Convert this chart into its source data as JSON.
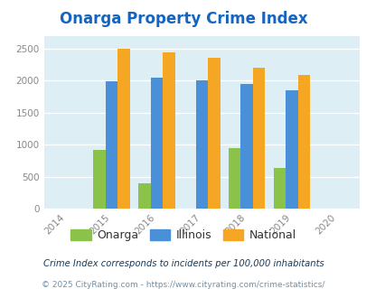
{
  "title": "Onarga Property Crime Index",
  "title_color": "#1565c0",
  "years": [
    2015,
    2016,
    2017,
    2018,
    2019
  ],
  "xlim": [
    2013.5,
    2020.5
  ],
  "xticks": [
    2014,
    2015,
    2016,
    2017,
    2018,
    2019,
    2020
  ],
  "ylim": [
    0,
    2700
  ],
  "yticks": [
    0,
    500,
    1000,
    1500,
    2000,
    2500
  ],
  "onarga": [
    920,
    390,
    0,
    950,
    640
  ],
  "illinois": [
    1995,
    2040,
    2010,
    1940,
    1845
  ],
  "national": [
    2495,
    2445,
    2350,
    2195,
    2090
  ],
  "color_onarga": "#8bc34a",
  "color_illinois": "#4a90d9",
  "color_national": "#f5a623",
  "bar_width": 0.27,
  "bg_color": "#ddeef5",
  "legend_labels": [
    "Onarga",
    "Illinois",
    "National"
  ],
  "footnote1": "Crime Index corresponds to incidents per 100,000 inhabitants",
  "footnote2": "© 2025 CityRating.com - https://www.cityrating.com/crime-statistics/",
  "footnote_color1": "#1a3a5c",
  "footnote_color2": "#7090aa",
  "grid_color": "#ffffff"
}
